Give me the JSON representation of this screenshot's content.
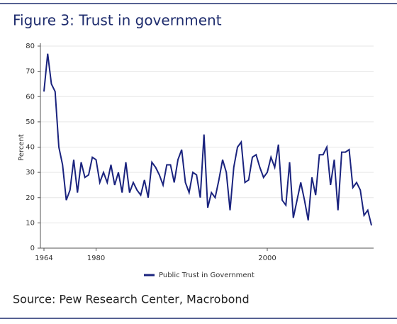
{
  "chart_data": {
    "type": "line",
    "title": "Figure 3: Trust in government",
    "source": "Source: Pew Research Center, Macrobond",
    "y_label": "Percent",
    "categories": [
      "1964",
      null,
      null,
      null,
      null,
      null,
      null,
      null,
      null,
      null,
      null,
      null,
      null,
      null,
      "1980",
      null,
      null,
      null,
      null,
      null,
      null,
      null,
      null,
      null,
      null,
      null,
      null,
      null,
      null,
      null,
      null,
      null,
      null,
      null,
      null,
      null,
      null,
      null,
      null,
      null,
      null,
      null,
      null,
      null,
      null,
      null,
      null,
      null,
      null,
      null,
      null,
      null,
      null,
      null,
      null,
      null,
      null,
      null,
      null,
      null,
      "2000",
      null,
      null,
      null,
      null,
      null,
      null,
      null,
      null,
      null,
      null,
      null,
      null,
      null,
      null,
      null,
      null,
      null,
      null,
      null,
      null,
      null,
      null,
      null,
      null,
      null,
      null,
      null,
      null
    ],
    "series": [
      {
        "name": "Public Trust in Government",
        "color": "#1a237e",
        "values": [
          62,
          77,
          65,
          62,
          40,
          33,
          19,
          23,
          35,
          22,
          34,
          28,
          29,
          36,
          35,
          26,
          30,
          26,
          33,
          25,
          30,
          22,
          34,
          22,
          26,
          23,
          21,
          27,
          20,
          34,
          32,
          29,
          25,
          33,
          33,
          26,
          35,
          39,
          26,
          22,
          30,
          29,
          20,
          45,
          16,
          22,
          20,
          27,
          35,
          30,
          15,
          32,
          40,
          42,
          26,
          27,
          36,
          37,
          32,
          28,
          30,
          36,
          32,
          41,
          19,
          17,
          34,
          12,
          19,
          26,
          19,
          11,
          28,
          21,
          37,
          37,
          40,
          25,
          35,
          15,
          38,
          38,
          39,
          24,
          26,
          23,
          13,
          15,
          9
        ]
      }
    ],
    "ylim": [
      0,
      80
    ],
    "yticks": [
      0,
      10,
      20,
      30,
      40,
      50,
      60,
      70,
      80
    ],
    "grid": true,
    "legend": "bottom"
  }
}
